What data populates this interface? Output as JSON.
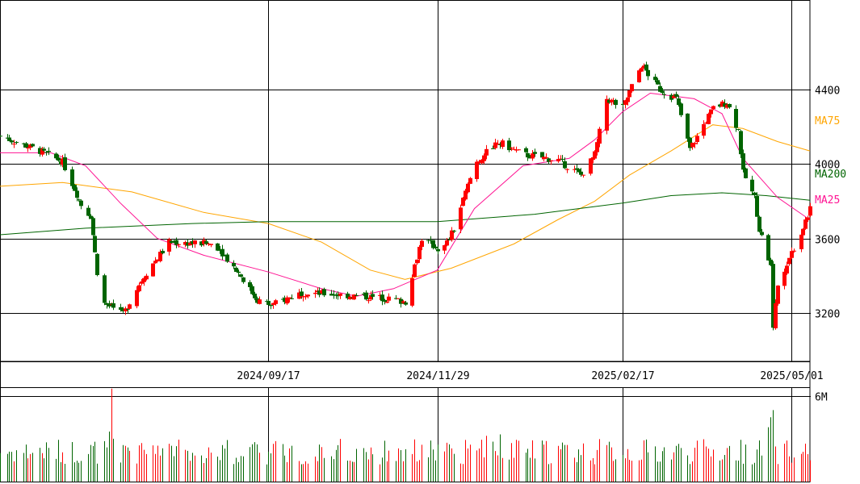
{
  "chart_data": [
    {
      "type": "candlestick",
      "x_start": "2024-05-24",
      "x_end": "2025-05-09",
      "y_range": [
        2940,
        4880
      ],
      "y_ticks": [
        3200,
        3600,
        4000,
        4400
      ],
      "y_tick_labels": [
        "3200",
        "3600",
        "4000",
        "4400"
      ],
      "x_ticks": [
        "2024-09-17",
        "2024-11-29",
        "2025-02-17",
        "2025-05-01"
      ],
      "x_tick_labels": [
        "2024/09/17",
        "2024/11/29",
        "2025/02/17",
        "2025/05/01"
      ],
      "grid": true,
      "colors": {
        "up": "#ff0000",
        "down": "#006400"
      },
      "series": [
        {
          "name": "MA75",
          "color": "#ffa500",
          "points": [
            [
              "2024-05-24",
              3880
            ],
            [
              "2024-06-20",
              3900
            ],
            [
              "2024-07-20",
              3850
            ],
            [
              "2024-08-20",
              3740
            ],
            [
              "2024-09-17",
              3680
            ],
            [
              "2024-10-10",
              3580
            ],
            [
              "2024-10-31",
              3430
            ],
            [
              "2024-11-15",
              3380
            ],
            [
              "2024-12-05",
              3440
            ],
            [
              "2025-01-01",
              3570
            ],
            [
              "2025-01-20",
              3700
            ],
            [
              "2025-02-05",
              3800
            ],
            [
              "2025-02-20",
              3940
            ],
            [
              "2025-03-10",
              4070
            ],
            [
              "2025-03-28",
              4210
            ],
            [
              "2025-04-10",
              4190
            ],
            [
              "2025-04-25",
              4120
            ],
            [
              "2025-05-09",
              4070
            ]
          ]
        },
        {
          "name": "MA200",
          "color": "#006400",
          "points": [
            [
              "2024-05-24",
              3620
            ],
            [
              "2024-06-30",
              3655
            ],
            [
              "2024-08-15",
              3680
            ],
            [
              "2024-09-17",
              3690
            ],
            [
              "2024-11-29",
              3690
            ],
            [
              "2025-01-10",
              3730
            ],
            [
              "2025-02-17",
              3790
            ],
            [
              "2025-03-10",
              3830
            ],
            [
              "2025-04-01",
              3845
            ],
            [
              "2025-04-20",
              3830
            ],
            [
              "2025-05-09",
              3805
            ]
          ]
        },
        {
          "name": "MA25",
          "color": "#ff1493",
          "points": [
            [
              "2024-05-24",
              4060
            ],
            [
              "2024-06-15",
              4060
            ],
            [
              "2024-06-30",
              3990
            ],
            [
              "2024-07-15",
              3790
            ],
            [
              "2024-07-31",
              3600
            ],
            [
              "2024-08-20",
              3510
            ],
            [
              "2024-09-17",
              3420
            ],
            [
              "2024-10-10",
              3330
            ],
            [
              "2024-10-25",
              3290
            ],
            [
              "2024-11-10",
              3330
            ],
            [
              "2024-11-29",
              3430
            ],
            [
              "2024-12-15",
              3760
            ],
            [
              "2025-01-05",
              3990
            ],
            [
              "2025-01-25",
              4030
            ],
            [
              "2025-02-05",
              4130
            ],
            [
              "2025-02-17",
              4280
            ],
            [
              "2025-03-01",
              4380
            ],
            [
              "2025-03-20",
              4350
            ],
            [
              "2025-04-01",
              4270
            ],
            [
              "2025-04-10",
              4030
            ],
            [
              "2025-04-25",
              3820
            ],
            [
              "2025-05-09",
              3700
            ]
          ]
        }
      ],
      "anchors": [
        [
          "2024-05-24",
          4150
        ],
        [
          "2024-06-10",
          4070
        ],
        [
          "2024-06-20",
          4010
        ],
        [
          "2024-06-28",
          3780
        ],
        [
          "2024-07-02",
          3720
        ],
        [
          "2024-07-05",
          3420
        ],
        [
          "2024-07-08",
          3250
        ],
        [
          "2024-07-16",
          3190
        ],
        [
          "2024-07-25",
          3400
        ],
        [
          "2024-08-05",
          3580
        ],
        [
          "2024-08-25",
          3570
        ],
        [
          "2024-09-05",
          3400
        ],
        [
          "2024-09-12",
          3270
        ],
        [
          "2024-09-18",
          3240
        ],
        [
          "2024-10-01",
          3310
        ],
        [
          "2024-10-15",
          3300
        ],
        [
          "2024-11-05",
          3280
        ],
        [
          "2024-11-15",
          3260
        ],
        [
          "2024-11-22",
          3600
        ],
        [
          "2024-12-01",
          3530
        ],
        [
          "2024-12-06",
          3650
        ],
        [
          "2024-12-15",
          4000
        ],
        [
          "2024-12-25",
          4120
        ],
        [
          "2025-01-05",
          4050
        ],
        [
          "2025-01-20",
          4020
        ],
        [
          "2025-01-30",
          3940
        ],
        [
          "2025-02-05",
          4050
        ],
        [
          "2025-02-10",
          4350
        ],
        [
          "2025-02-17",
          4300
        ],
        [
          "2025-02-25",
          4530
        ],
        [
          "2025-03-05",
          4400
        ],
        [
          "2025-03-12",
          4350
        ],
        [
          "2025-03-18",
          4080
        ],
        [
          "2025-03-28",
          4300
        ],
        [
          "2025-04-03",
          4330
        ],
        [
          "2025-04-08",
          4180
        ],
        [
          "2025-04-10",
          3950
        ],
        [
          "2025-04-15",
          3820
        ],
        [
          "2025-04-17",
          3650
        ],
        [
          "2025-04-22",
          3450
        ],
        [
          "2025-04-23",
          3140
        ],
        [
          "2025-04-25",
          3350
        ],
        [
          "2025-04-30",
          3500
        ],
        [
          "2025-05-05",
          3630
        ],
        [
          "2025-05-09",
          3760
        ]
      ]
    },
    {
      "type": "bar",
      "name": "volume",
      "y_range": [
        0,
        6600000
      ],
      "y_ticks": [
        6000000
      ],
      "y_tick_labels": [
        "6M"
      ],
      "spikes": [
        [
          "2024-07-11",
          6500000
        ],
        [
          "2024-07-10",
          3500000
        ],
        [
          "2024-07-12",
          3000000
        ],
        [
          "2024-12-20",
          3200000
        ],
        [
          "2024-12-26",
          3300000
        ],
        [
          "2025-04-22",
          4500000
        ],
        [
          "2025-04-23",
          5000000
        ],
        [
          "2025-04-21",
          3800000
        ]
      ],
      "base": 2000000
    }
  ],
  "labels": {
    "ma75": "MA75",
    "ma200": "MA200",
    "ma25": "MA25"
  }
}
